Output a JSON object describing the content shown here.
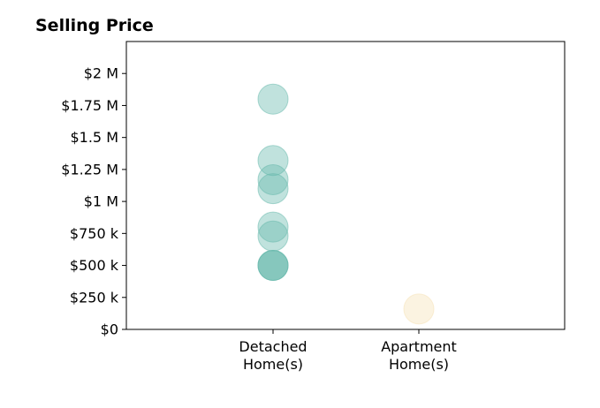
{
  "chart_data": {
    "type": "scatter",
    "title": "Selling Price",
    "xlabel": "",
    "ylabel": "",
    "categories": [
      "Detached\nHome(s)",
      "Apartment\nHome(s)"
    ],
    "ylim": [
      0,
      2250000
    ],
    "yticks": [
      {
        "value": 0,
        "label": "$0"
      },
      {
        "value": 250000,
        "label": "$250 k"
      },
      {
        "value": 500000,
        "label": "$500 k"
      },
      {
        "value": 750000,
        "label": "$750 k"
      },
      {
        "value": 1000000,
        "label": "$1 M"
      },
      {
        "value": 1250000,
        "label": "$1.25 M"
      },
      {
        "value": 1500000,
        "label": "$1.5 M"
      },
      {
        "value": 1750000,
        "label": "$1.75 M"
      },
      {
        "value": 2000000,
        "label": "$2 M"
      }
    ],
    "grid": false,
    "series": [
      {
        "category_index": 0,
        "color": "#69b9ad",
        "values": [
          1800000,
          1320000,
          1170000,
          1100000,
          800000,
          730000,
          500000,
          500000,
          500000
        ]
      },
      {
        "category_index": 1,
        "color": "#f5e2b8",
        "values": [
          160000
        ]
      }
    ]
  }
}
